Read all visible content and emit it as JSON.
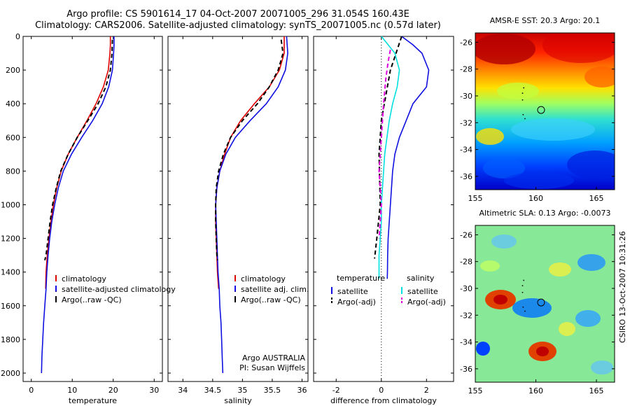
{
  "header": {
    "line1": "Argo profile: CS 5901614_17 04-Oct-2007 20071005_296 31.054S 160.43E",
    "line2": "Climatology: CARS2006. Satellite-adjusted climatology: synTS_20071005.nc (0.57d later)"
  },
  "side_text": "CSIRO 13-Oct-2007 10:31:26",
  "colors": {
    "climatology": "#e00000",
    "satellite": "#1010e0",
    "argo": "#000000",
    "salinity_satellite": "#00e0e0",
    "salinity_argo": "#e000e0"
  },
  "chart_data": [
    {
      "type": "line",
      "id": "temperature",
      "xlabel": "temperature",
      "ylabel": "",
      "xlim": [
        -2,
        32
      ],
      "ylim": [
        2050,
        0
      ],
      "x_ticks": [
        0,
        10,
        20,
        30
      ],
      "y_ticks": [
        0,
        200,
        400,
        600,
        800,
        1000,
        1200,
        1400,
        1600,
        1800,
        2000
      ],
      "series": [
        {
          "name": "climatology",
          "color": "#e00000",
          "style": "solid",
          "points": [
            [
              19.3,
              0
            ],
            [
              19.3,
              50
            ],
            [
              19.2,
              100
            ],
            [
              18.8,
              200
            ],
            [
              17.6,
              300
            ],
            [
              15.8,
              400
            ],
            [
              13.6,
              500
            ],
            [
              11.2,
              600
            ],
            [
              9.0,
              700
            ],
            [
              7.3,
              800
            ],
            [
              6.2,
              900
            ],
            [
              5.4,
              1000
            ],
            [
              4.8,
              1100
            ],
            [
              4.3,
              1200
            ],
            [
              3.9,
              1300
            ],
            [
              3.6,
              1400
            ],
            [
              3.5,
              1500
            ]
          ]
        },
        {
          "name": "satellite-adjusted climatology",
          "color": "#1010e0",
          "style": "solid",
          "points": [
            [
              20.2,
              0
            ],
            [
              20.2,
              50
            ],
            [
              20.1,
              100
            ],
            [
              19.8,
              200
            ],
            [
              18.9,
              300
            ],
            [
              17.3,
              400
            ],
            [
              15.0,
              500
            ],
            [
              12.3,
              600
            ],
            [
              9.8,
              700
            ],
            [
              7.8,
              800
            ],
            [
              6.6,
              900
            ],
            [
              5.7,
              1000
            ],
            [
              5.0,
              1100
            ],
            [
              4.5,
              1200
            ],
            [
              4.1,
              1300
            ],
            [
              3.8,
              1400
            ],
            [
              3.6,
              1500
            ],
            [
              3.3,
              1600
            ],
            [
              3.0,
              1700
            ],
            [
              2.8,
              1800
            ],
            [
              2.6,
              1900
            ],
            [
              2.5,
              2000
            ]
          ]
        },
        {
          "name": "Argo(..raw -QC)",
          "color": "#000000",
          "style": "dashed",
          "points": [
            [
              19.8,
              20
            ],
            [
              19.7,
              100
            ],
            [
              19.3,
              200
            ],
            [
              18.2,
              300
            ],
            [
              16.3,
              400
            ],
            [
              13.8,
              500
            ],
            [
              11.2,
              600
            ],
            [
              9.0,
              700
            ],
            [
              7.2,
              800
            ],
            [
              6.1,
              900
            ],
            [
              5.2,
              1000
            ],
            [
              4.6,
              1100
            ],
            [
              4.1,
              1200
            ],
            [
              3.6,
              1300
            ],
            [
              3.3,
              1330
            ]
          ]
        }
      ],
      "legend": {
        "position": "lower-center",
        "entries": [
          "climatology",
          "satellite-adjusted climatology",
          "Argo(..raw -QC)"
        ]
      }
    },
    {
      "type": "line",
      "id": "salinity",
      "xlabel": "salinity",
      "ylabel": "",
      "xlim": [
        33.75,
        36.1
      ],
      "ylim": [
        2050,
        0
      ],
      "x_ticks": [
        34,
        34.5,
        35,
        35.5,
        36
      ],
      "x_tick_labels": [
        "34",
        "34.5",
        "35",
        "35.5",
        "36"
      ],
      "series": [
        {
          "name": "climatology",
          "color": "#e00000",
          "style": "solid",
          "points": [
            [
              35.7,
              0
            ],
            [
              35.7,
              100
            ],
            [
              35.62,
              200
            ],
            [
              35.45,
              300
            ],
            [
              35.2,
              400
            ],
            [
              34.97,
              500
            ],
            [
              34.8,
              600
            ],
            [
              34.7,
              700
            ],
            [
              34.62,
              800
            ],
            [
              34.57,
              900
            ],
            [
              34.55,
              1000
            ],
            [
              34.55,
              1100
            ],
            [
              34.56,
              1200
            ],
            [
              34.57,
              1300
            ],
            [
              34.58,
              1400
            ],
            [
              34.6,
              1500
            ]
          ]
        },
        {
          "name": "satellite adj. clim.",
          "color": "#1010e0",
          "style": "solid",
          "points": [
            [
              35.74,
              0
            ],
            [
              35.76,
              100
            ],
            [
              35.72,
              200
            ],
            [
              35.6,
              300
            ],
            [
              35.4,
              400
            ],
            [
              35.13,
              500
            ],
            [
              34.88,
              600
            ],
            [
              34.72,
              700
            ],
            [
              34.62,
              800
            ],
            [
              34.57,
              900
            ],
            [
              34.55,
              1000
            ],
            [
              34.56,
              1100
            ],
            [
              34.57,
              1200
            ],
            [
              34.58,
              1300
            ],
            [
              34.59,
              1400
            ],
            [
              34.61,
              1500
            ],
            [
              34.62,
              1600
            ],
            [
              34.64,
              1700
            ],
            [
              34.65,
              1800
            ],
            [
              34.66,
              1900
            ],
            [
              34.67,
              2000
            ]
          ]
        },
        {
          "name": "Argo(..raw -QC)",
          "color": "#000000",
          "style": "dashed",
          "points": [
            [
              35.65,
              20
            ],
            [
              35.68,
              100
            ],
            [
              35.6,
              200
            ],
            [
              35.45,
              300
            ],
            [
              35.25,
              400
            ],
            [
              35.0,
              500
            ],
            [
              34.8,
              600
            ],
            [
              34.68,
              700
            ],
            [
              34.6,
              800
            ],
            [
              34.56,
              900
            ],
            [
              34.55,
              1000
            ],
            [
              34.55,
              1100
            ],
            [
              34.56,
              1200
            ],
            [
              34.57,
              1300
            ],
            [
              34.58,
              1330
            ]
          ]
        }
      ],
      "legend": {
        "position": "lower-center",
        "entries": [
          "climatology",
          "satellite adj. clim.",
          "Argo(..raw -QC)"
        ]
      },
      "annotations": [
        "Argo AUSTRALIA",
        "PI: Susan Wijffels"
      ]
    },
    {
      "type": "line",
      "id": "difference",
      "xlabel": "difference from climatology",
      "ylabel": "",
      "xlim": [
        -3,
        3.2
      ],
      "ylim": [
        2050,
        0
      ],
      "x_ticks": [
        -2,
        0,
        2
      ],
      "series": [
        {
          "name": "temperature satellite",
          "color": "#1010e0",
          "style": "solid",
          "points": [
            [
              0.9,
              0
            ],
            [
              1.4,
              50
            ],
            [
              1.8,
              100
            ],
            [
              2.1,
              200
            ],
            [
              2.0,
              300
            ],
            [
              1.4,
              400
            ],
            [
              1.1,
              500
            ],
            [
              0.8,
              600
            ],
            [
              0.6,
              700
            ],
            [
              0.5,
              800
            ],
            [
              0.45,
              900
            ],
            [
              0.4,
              1000
            ],
            [
              0.35,
              1100
            ],
            [
              0.3,
              1200
            ],
            [
              0.28,
              1300
            ],
            [
              0.27,
              1400
            ],
            [
              0.26,
              1440
            ]
          ]
        },
        {
          "name": "temperature Argo(-adj)",
          "color": "#000000",
          "style": "dashed",
          "points": [
            [
              0.9,
              0
            ],
            [
              0.7,
              80
            ],
            [
              0.4,
              200
            ],
            [
              0.0,
              500
            ],
            [
              -0.1,
              700
            ],
            [
              -0.05,
              1000
            ],
            [
              -0.2,
              1200
            ],
            [
              -0.3,
              1320
            ]
          ]
        },
        {
          "name": "salinity satellite",
          "color": "#00e0e0",
          "style": "solid",
          "points": [
            [
              0.0,
              0
            ],
            [
              0.3,
              50
            ],
            [
              0.6,
              100
            ],
            [
              0.8,
              200
            ],
            [
              0.7,
              300
            ],
            [
              0.5,
              400
            ],
            [
              0.35,
              500
            ],
            [
              0.25,
              600
            ],
            [
              0.15,
              700
            ],
            [
              0.1,
              800
            ],
            [
              0.05,
              900
            ],
            [
              0.0,
              1000
            ],
            [
              0.0,
              1100
            ],
            [
              -0.05,
              1200
            ],
            [
              -0.1,
              1300
            ],
            [
              -0.1,
              1400
            ],
            [
              -0.1,
              1440
            ]
          ]
        },
        {
          "name": "salinity Argo(-adj)",
          "color": "#e000e0",
          "style": "dashed",
          "points": [
            [
              0.4,
              80
            ],
            [
              0.3,
              150
            ],
            [
              0.2,
              250
            ],
            [
              0.1,
              400
            ],
            [
              0.05,
              500
            ],
            [
              0.0,
              600
            ],
            [
              -0.05,
              700
            ],
            [
              -0.1,
              800
            ],
            [
              -0.05,
              900
            ],
            [
              0.0,
              1000
            ],
            [
              -0.05,
              1100
            ],
            [
              -0.1,
              1200
            ]
          ]
        }
      ],
      "zero_line": true,
      "legend": {
        "position": "lower-center",
        "headers": [
          "temperature",
          "salinity"
        ],
        "entries": [
          "satellite",
          "Argo(-adj)",
          "satellite",
          "Argo(-adj)"
        ]
      }
    },
    {
      "type": "heatmap",
      "id": "sst-map",
      "title": "AMSR-E SST: 20.3 Argo: 20.1",
      "xlim": [
        155,
        166.5
      ],
      "ylim": [
        -37,
        -25.3
      ],
      "x_ticks": [
        155,
        160,
        165
      ],
      "y_ticks": [
        -26,
        -28,
        -30,
        -32,
        -34,
        -36
      ],
      "colormap": "jet",
      "marker": {
        "lon": 160.43,
        "lat": -31.05
      },
      "track": [
        [
          159.0,
          -29.4
        ],
        [
          158.9,
          -29.8
        ],
        [
          158.9,
          -30.3
        ],
        [
          158.95,
          -31.4
        ],
        [
          159.1,
          -31.7
        ]
      ]
    },
    {
      "type": "heatmap",
      "id": "sla-map",
      "title": "Altimetric SLA: 0.13 Argo: -0.0073",
      "xlim": [
        155,
        166.5
      ],
      "ylim": [
        -37,
        -25.3
      ],
      "x_ticks": [
        155,
        160,
        165
      ],
      "y_ticks": [
        -26,
        -28,
        -30,
        -32,
        -34,
        -36
      ],
      "colormap": "jet",
      "marker": {
        "lon": 160.43,
        "lat": -31.05
      },
      "track": [
        [
          159.0,
          -29.4
        ],
        [
          158.9,
          -29.8
        ],
        [
          158.9,
          -30.3
        ],
        [
          158.95,
          -31.4
        ],
        [
          159.1,
          -31.7
        ]
      ]
    }
  ]
}
